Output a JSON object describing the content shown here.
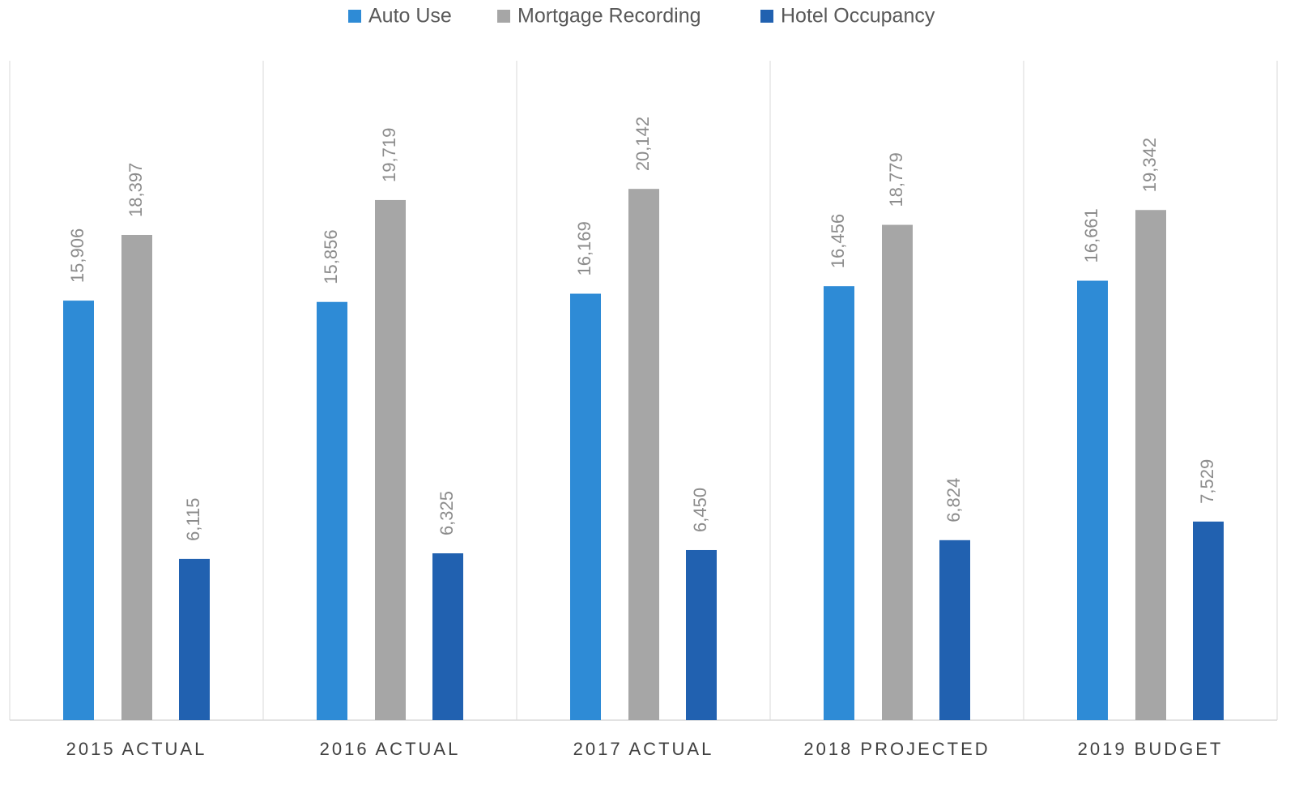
{
  "chart_data": {
    "type": "bar",
    "categories": [
      "2015 ACTUAL",
      "2016 ACTUAL",
      "2017 ACTUAL",
      "2018 PROJECTED",
      "2019 BUDGET"
    ],
    "series": [
      {
        "name": "Auto Use",
        "color": "#2e8bd6",
        "values": [
          15906,
          15856,
          16169,
          16456,
          16661
        ],
        "value_labels": [
          "15,906",
          "15,856",
          "16,169",
          "16,456",
          "16,661"
        ]
      },
      {
        "name": "Mortgage Recording",
        "color": "#a6a6a6",
        "values": [
          18397,
          19719,
          20142,
          18779,
          19342
        ],
        "value_labels": [
          "18,397",
          "19,719",
          "20,142",
          "18,779",
          "19,342"
        ]
      },
      {
        "name": "Hotel Occupancy",
        "color": "#2161b0",
        "values": [
          6115,
          6325,
          6450,
          6824,
          7529
        ],
        "value_labels": [
          "6,115",
          "6,325",
          "6,450",
          "6,824",
          "7,529"
        ]
      }
    ],
    "ylim": [
      0,
      25000
    ],
    "legend": "top"
  }
}
